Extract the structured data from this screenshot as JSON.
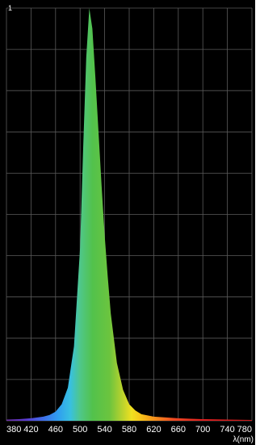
{
  "chart_data": {
    "type": "area",
    "title": "",
    "xlabel": "λ(nm)",
    "ylabel": "",
    "y_top_label": "1",
    "xlim": [
      380,
      780
    ],
    "ylim": [
      0,
      1
    ],
    "grid": true,
    "x_ticks": [
      "380",
      "420",
      "460",
      "500",
      "540",
      "580",
      "620",
      "660",
      "700",
      "740",
      "780"
    ],
    "series": [
      {
        "x": [
          380,
          400,
          420,
          440,
          450,
          460,
          470,
          480,
          490,
          500,
          505,
          510,
          515,
          520,
          525,
          530,
          535,
          540,
          545,
          550,
          560,
          570,
          580,
          590,
          600,
          620,
          640,
          660,
          680,
          700,
          740,
          780
        ],
        "y": [
          0.003,
          0.004,
          0.006,
          0.01,
          0.014,
          0.022,
          0.04,
          0.08,
          0.18,
          0.42,
          0.66,
          0.88,
          1.0,
          0.95,
          0.83,
          0.7,
          0.57,
          0.45,
          0.35,
          0.26,
          0.14,
          0.075,
          0.04,
          0.025,
          0.016,
          0.01,
          0.008,
          0.006,
          0.005,
          0.004,
          0.003,
          0.002
        ]
      }
    ]
  }
}
